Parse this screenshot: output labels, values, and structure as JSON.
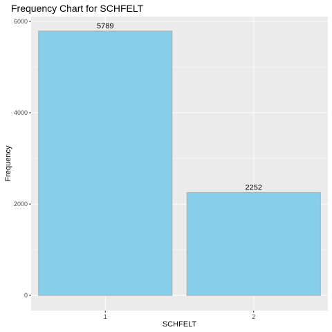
{
  "chart_data": {
    "type": "bar",
    "title": "Frequency Chart for SCHFELT",
    "xlabel": "SCHFELT",
    "ylabel": "Frequency",
    "categories": [
      "1",
      "2"
    ],
    "values": [
      5789,
      2252
    ],
    "data_labels": [
      "5789",
      "2252"
    ],
    "ylim": [
      0,
      6000
    ],
    "yticks": [
      0,
      2000,
      4000,
      6000
    ],
    "ytick_labels": [
      "0",
      "2000",
      "4000",
      "6000"
    ],
    "grid": true,
    "legend": "none",
    "colors": {
      "panel_background": "#ebebeb",
      "grid_major": "#ffffff",
      "bar_fill": "#87ceeb",
      "bar_outline": "#a9a9a9",
      "tick_text": "#4d4d4d",
      "tick_mark": "#333333"
    }
  }
}
